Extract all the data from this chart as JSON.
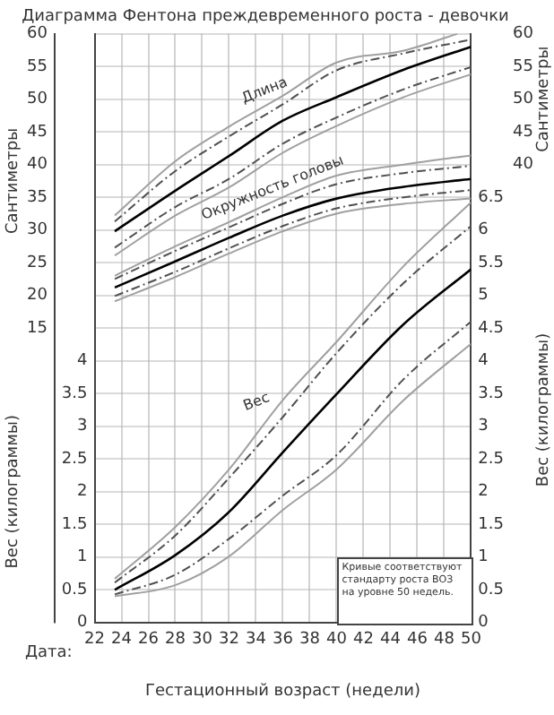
{
  "chart_data": {
    "type": "line",
    "title": "Диаграмма Фентона преждевременного роста - девочки",
    "xlabel": "Гестационный возраст (недели)",
    "ylabel": "Сантиметры",
    "y2label": "Вес (килограммы)",
    "y3label": "Вес (килограммы)",
    "x": [
      23.5,
      28,
      32,
      36,
      40,
      45,
      50
    ],
    "xlim": [
      22,
      50
    ],
    "xticks": [
      22,
      24,
      26,
      28,
      30,
      32,
      34,
      36,
      38,
      40,
      42,
      44,
      46,
      48,
      50
    ],
    "ylim": [
      -30,
      60
    ],
    "yticks": [
      15,
      20,
      25,
      30,
      35,
      40,
      45,
      50,
      55,
      60
    ],
    "y3lim": [
      0,
      9
    ],
    "y3ticks": [
      0,
      0.5,
      1,
      1.5,
      2,
      2.5,
      3,
      3.5,
      4
    ],
    "y2lim": [
      0,
      9
    ],
    "y2ticks": [
      0,
      0.5,
      1,
      1.5,
      2,
      2.5,
      3,
      3.5,
      4,
      4.5,
      5,
      5.5,
      6,
      6.5
    ],
    "grid": true,
    "legend": false,
    "marker": "none",
    "series": [
      {
        "color": "#a0a0a0",
        "line_style": "solid",
        "x": [
          23.5,
          28,
          32,
          36,
          40,
          45,
          49
        ],
        "values": [
          32.2,
          40.5,
          45.8,
          50.5,
          55.6,
          57.4,
          60
        ]
      },
      {
        "color": "#505050",
        "line_style": "dashed",
        "values": [
          31.3,
          39,
          44.3,
          49.2,
          54.4,
          57,
          59.1
        ]
      },
      {
        "color": "#000000",
        "line_style": "solid",
        "values": [
          29.8,
          36,
          41.3,
          46.7,
          50.3,
          54.5,
          58
        ]
      },
      {
        "color": "#505050",
        "line_style": "dashed",
        "values": [
          27.3,
          33.5,
          37.8,
          43.2,
          47.2,
          51.5,
          54.9
        ]
      },
      {
        "color": "#a0a0a0",
        "line_style": "solid",
        "values": [
          26.1,
          32.2,
          36.5,
          41.8,
          45.9,
          50.3,
          53.8
        ]
      },
      {
        "color": "#a0a0a0",
        "line_style": "solid",
        "values": [
          23,
          27.5,
          31.2,
          35,
          38.3,
          40,
          41.4
        ]
      },
      {
        "color": "#505050",
        "line_style": "dashed",
        "values": [
          22.5,
          26.8,
          30.4,
          34,
          37,
          38.7,
          39.8
        ]
      },
      {
        "color": "#000000",
        "line_style": "solid",
        "values": [
          21.2,
          25.2,
          28.8,
          32.2,
          34.8,
          36.6,
          37.8
        ]
      },
      {
        "color": "#505050",
        "line_style": "dashed",
        "values": [
          19.9,
          23.6,
          27.2,
          30.6,
          33.3,
          35,
          36.1
        ]
      },
      {
        "color": "#a0a0a0",
        "line_style": "solid",
        "values": [
          19.1,
          22.8,
          26.4,
          29.8,
          32.5,
          34,
          34.8
        ]
      },
      {
        "color": "#a0a0a0",
        "line_style": "solid",
        "axis": "y2",
        "values": [
          0.67,
          1.46,
          2.34,
          3.4,
          4.29,
          5.45,
          6.42
        ]
      },
      {
        "color": "#505050",
        "line_style": "dashed",
        "axis": "y2",
        "values": [
          0.61,
          1.33,
          2.21,
          3.14,
          4.12,
          5.19,
          6.06
        ]
      },
      {
        "color": "#000000",
        "line_style": "solid",
        "axis": "y2",
        "values": [
          0.5,
          1.03,
          1.69,
          2.6,
          3.49,
          4.56,
          5.4
        ]
      },
      {
        "color": "#505050",
        "line_style": "dashed",
        "axis": "y2",
        "values": [
          0.43,
          0.73,
          1.28,
          1.94,
          2.56,
          3.72,
          4.6
        ]
      },
      {
        "color": "#a0a0a0",
        "line_style": "solid",
        "axis": "y2",
        "values": [
          0.4,
          0.57,
          1.01,
          1.72,
          2.34,
          3.4,
          4.26
        ]
      }
    ],
    "annotations": [
      "Дата:",
      "Кривые соответствуют стандарту роста ВОЗ на уровне 50 недель.",
      "Сантиметры",
      "40",
      "45",
      "50",
      "55",
      "60",
      {
        "text": "Длина",
        "x": 35,
        "y": 49.5
      },
      {
        "text": "Окружность головы",
        "x": 35.6,
        "y": 34.6
      },
      {
        "text": "Вес",
        "x": 34.4,
        "y": 1.9
      }
    ]
  }
}
